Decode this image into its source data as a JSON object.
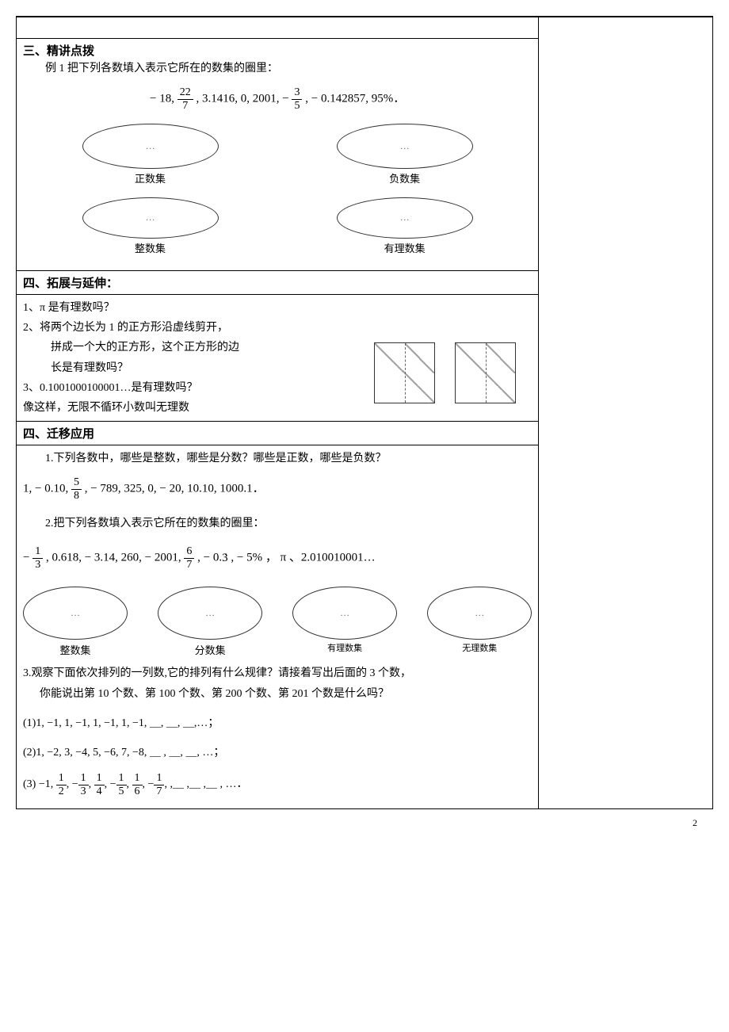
{
  "page_number": "2",
  "sections": {
    "s3_title": "三、精讲点拨",
    "s3_ex1": "例 1  把下列各数填入表示它所在的数集的圈里：",
    "s3_nums_prefix": "− 18,  ",
    "s3_frac1_num": "22",
    "s3_frac1_den": "7",
    "s3_nums_mid": ",  3.1416,  0,  2001,  −",
    "s3_frac2_num": "3",
    "s3_frac2_den": "5",
    "s3_nums_suffix": ",  − 0.142857,  95%．",
    "ellipse_dots": "…",
    "labels": {
      "positive": "正数集",
      "negative": "负数集",
      "integer": "整数集",
      "rational": "有理数集",
      "fraction": "分数集",
      "rational2": "有理数集",
      "irrational": "无理数集"
    },
    "s4_title": "四、拓展与延伸：",
    "s4_q1": "1、π 是有理数吗？",
    "s4_q2_l1": "2、将两个边长为 1 的正方形沿虚线剪开，",
    "s4_q2_l2": "拼成一个大的正方形，这个正方形的边",
    "s4_q2_l3": "长是有理数吗？",
    "s4_q3": "3、0.1001000100001…是有理数吗？",
    "s4_note": "像这样，无限不循环小数叫无理数",
    "s5_title": "四、迁移应用",
    "s5_q1": "1.下列各数中，哪些是整数，哪些是分数？哪些是正数，哪些是负数？",
    "s5_q1_nums_prefix": "1,  − 0.10,  ",
    "s5_q1_frac_num": "5",
    "s5_q1_frac_den": "8",
    "s5_q1_nums_suffix": ",  − 789,  325,  0,  − 20,  10.10,  1000.1．",
    "s5_q2": "2.把下列各数填入表示它所在的数集的圈里：",
    "s5_q2_prefix": "−",
    "s5_q2_f1_num": "1",
    "s5_q2_f1_den": "3",
    "s5_q2_mid1": ",  0.618,  − 3.14,  260,  − 2001,  ",
    "s5_q2_f2_num": "6",
    "s5_q2_f2_den": "7",
    "s5_q2_mid2": ",  − 0.",
    "s5_q2_rep": "3",
    "s5_q2_suffix": ",  − 5% ， π 、2.010010001…",
    "s5_q3_l1": "3.观察下面依次排列的一列数,它的排列有什么规律？请接着写出后面的 3 个数，",
    "s5_q3_l2": "你能说出第 10 个数、第 100 个数、第 200 个数、第 201 个数是什么吗？",
    "s5_seq1": "(1)1, −1, 1, −1, 1, −1, 1, −1, ＿, ＿, ＿,…；",
    "s5_seq2": "(2)1, −2, 3, −4, 5, −6, 7, −8, ＿ , ＿, ＿, …；",
    "s5_seq3_prefix": "(3) −1, ",
    "s5_seq3_suffix": ",＿ ,＿ ,＿ , …．",
    "seq3_fracs": [
      {
        "sign": "",
        "num": "1",
        "den": "2"
      },
      {
        "sign": "−",
        "num": "1",
        "den": "3"
      },
      {
        "sign": "",
        "num": "1",
        "den": "4"
      },
      {
        "sign": "−",
        "num": "1",
        "den": "5"
      },
      {
        "sign": "",
        "num": "1",
        "den": "6"
      },
      {
        "sign": "−",
        "num": "1",
        "den": "7"
      }
    ]
  }
}
